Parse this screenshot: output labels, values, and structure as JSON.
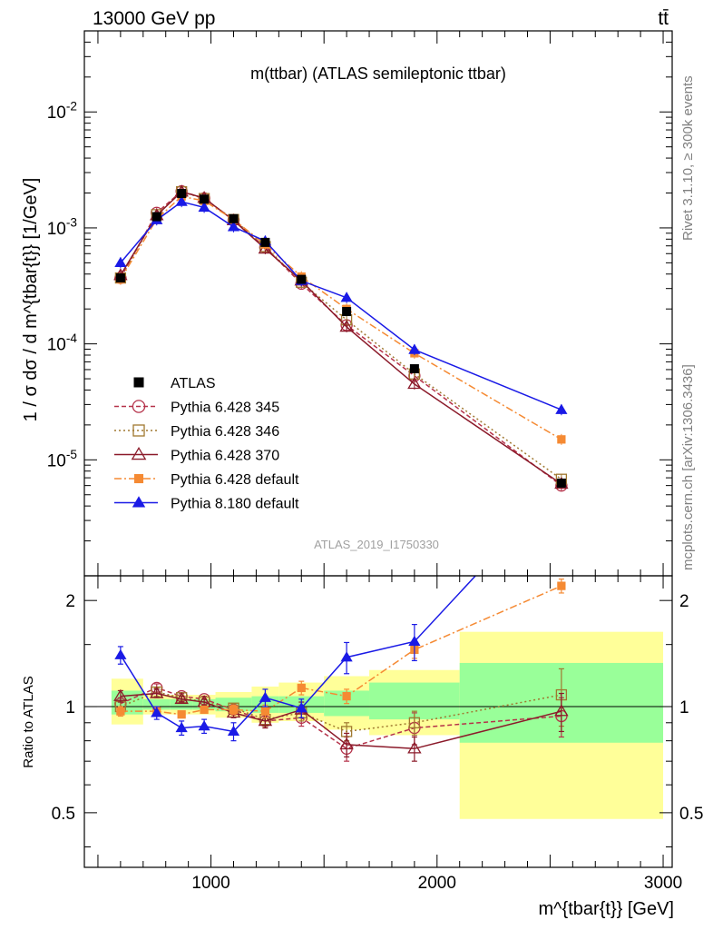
{
  "header": {
    "energy_label": "13000 GeV pp",
    "process_label": "tt̄"
  },
  "side_labels": {
    "rivet": "Rivet 3.1.10, ≥ 300k events",
    "mcplots": "mcplots.cern.ch [arXiv:1306.3436]"
  },
  "chart_data": {
    "type": "line",
    "title": "m(ttbar) (ATLAS semileptonic ttbar)",
    "analysis_id": "ATLAS_2019_I1750330",
    "xlabel": "m^{tbar{t}} [GeV]",
    "ylabel": "1 / σ dσ / d m^{tbar{t}} [1/GeV]",
    "ratio_ylabel": "Ratio to ATLAS",
    "xlim": [
      440,
      3040
    ],
    "ylim_log": [
      1e-06,
      0.05
    ],
    "ratio_ylim": [
      0.35,
      2.35
    ],
    "x_ticks": [
      1000,
      2000,
      3000
    ],
    "x_tick_labels": [
      "1000",
      "2000",
      "3000"
    ],
    "y_ticks": [
      1e-05,
      0.0001,
      0.001,
      0.01
    ],
    "y_tick_labels": [
      "10^{-5}",
      "10^{-4}",
      "10^{-3}",
      "10^{-2}"
    ],
    "ratio_ticks": [
      0.5,
      1,
      2
    ],
    "ratio_tick_labels": [
      "0.5",
      "1",
      "2"
    ],
    "bin_edges": [
      560,
      700,
      820,
      920,
      1020,
      1180,
      1300,
      1500,
      1700,
      2100,
      3000
    ],
    "band_inner": [
      [
        0.95,
        1.11
      ],
      [
        0.98,
        1.05
      ],
      [
        0.98,
        1.05
      ],
      [
        0.98,
        1.05
      ],
      [
        0.97,
        1.06
      ],
      [
        0.96,
        1.07
      ],
      [
        0.96,
        1.07
      ],
      [
        0.94,
        1.11
      ],
      [
        0.92,
        1.17
      ],
      [
        0.79,
        1.33
      ]
    ],
    "band_outer": [
      [
        0.89,
        1.2
      ],
      [
        0.95,
        1.08
      ],
      [
        0.95,
        1.08
      ],
      [
        0.95,
        1.08
      ],
      [
        0.93,
        1.1
      ],
      [
        0.9,
        1.14
      ],
      [
        0.91,
        1.17
      ],
      [
        0.86,
        1.22
      ],
      [
        0.83,
        1.27
      ],
      [
        0.48,
        1.63
      ]
    ],
    "data": {
      "name": "ATLAS",
      "x": [
        600,
        760,
        870,
        970,
        1100,
        1240,
        1400,
        1600,
        1900,
        2550
      ],
      "y": [
        0.00037,
        0.00125,
        0.00198,
        0.00177,
        0.0012,
        0.00075,
        0.00036,
        0.00019,
        6.1e-05,
        6.3e-06
      ]
    },
    "series": [
      {
        "name": "Pythia 6.428 345",
        "color": "#b5324a",
        "marker": "circle-open",
        "dash": "5,3",
        "x": [
          600,
          760,
          870,
          970,
          1100,
          1240,
          1400,
          1600,
          1900,
          2550
        ],
        "y": [
          0.00037,
          0.00135,
          0.00207,
          0.0018,
          0.00117,
          0.00068,
          0.00033,
          0.000145,
          5.3e-05,
          6e-06
        ],
        "ratio": [
          1.02,
          1.13,
          1.07,
          1.05,
          0.98,
          0.91,
          0.93,
          0.76,
          0.87,
          0.94
        ],
        "ratio_err": [
          0.04,
          0.03,
          0.02,
          0.02,
          0.03,
          0.04,
          0.05,
          0.06,
          0.09,
          0.12
        ]
      },
      {
        "name": "Pythia 6.428 346",
        "color": "#a07830",
        "marker": "square-open",
        "dash": "2,3",
        "x": [
          600,
          760,
          870,
          970,
          1100,
          1240,
          1400,
          1600,
          1900,
          2550
        ],
        "y": [
          0.00037,
          0.0013,
          0.00205,
          0.00179,
          0.00118,
          0.00069,
          0.00034,
          0.000161,
          5.5e-05,
          6.8e-06
        ],
        "ratio": [
          1.0,
          1.1,
          1.06,
          1.03,
          0.99,
          0.92,
          0.96,
          0.85,
          0.9,
          1.08
        ],
        "ratio_err": [
          0.04,
          0.03,
          0.02,
          0.02,
          0.03,
          0.04,
          0.05,
          0.05,
          0.07,
          0.2
        ]
      },
      {
        "name": "Pythia 6.428 370",
        "color": "#8b1a2a",
        "marker": "triangle-open",
        "dash": "",
        "x": [
          600,
          760,
          870,
          970,
          1100,
          1240,
          1400,
          1600,
          1900,
          2550
        ],
        "y": [
          0.00039,
          0.00128,
          0.00205,
          0.00181,
          0.00116,
          0.00066,
          0.00035,
          0.00014,
          4.5e-05,
          6.2e-06
        ],
        "ratio": [
          1.07,
          1.09,
          1.05,
          1.03,
          0.96,
          0.91,
          0.98,
          0.78,
          0.76,
          0.97
        ],
        "ratio_err": [
          0.04,
          0.03,
          0.02,
          0.02,
          0.03,
          0.04,
          0.05,
          0.06,
          0.06,
          0.12
        ]
      },
      {
        "name": "Pythia 6.428 default",
        "color": "#f58a33",
        "marker": "square-filled",
        "dash": "8,3,2,3",
        "x": [
          600,
          760,
          870,
          970,
          1100,
          1240,
          1400,
          1600,
          1900,
          2550
        ],
        "y": [
          0.00036,
          0.00119,
          0.00187,
          0.00171,
          0.00118,
          0.00072,
          0.00038,
          0.0002,
          8.3e-05,
          1.5e-05
        ],
        "ratio": [
          0.97,
          0.97,
          0.95,
          0.98,
          0.98,
          0.97,
          1.13,
          1.07,
          1.45,
          2.2
        ],
        "ratio_err": [
          0.03,
          0.03,
          0.02,
          0.02,
          0.03,
          0.04,
          0.05,
          0.05,
          0.08,
          0.1
        ]
      },
      {
        "name": "Pythia 8.180 default",
        "color": "#1a1ae6",
        "marker": "triangle-filled",
        "dash": "",
        "x": [
          600,
          760,
          870,
          970,
          1100,
          1240,
          1400,
          1600,
          1900,
          2550
        ],
        "y": [
          0.0005,
          0.00117,
          0.00168,
          0.0015,
          0.00102,
          0.00077,
          0.00035,
          0.00025,
          8.9e-05,
          2.7e-05
        ],
        "ratio": [
          1.4,
          0.96,
          0.87,
          0.88,
          0.85,
          1.06,
          0.99,
          1.38,
          1.53,
          4.3
        ],
        "ratio_err": [
          0.08,
          0.04,
          0.04,
          0.04,
          0.05,
          0.06,
          0.06,
          0.14,
          0.18,
          0.4
        ]
      }
    ]
  }
}
